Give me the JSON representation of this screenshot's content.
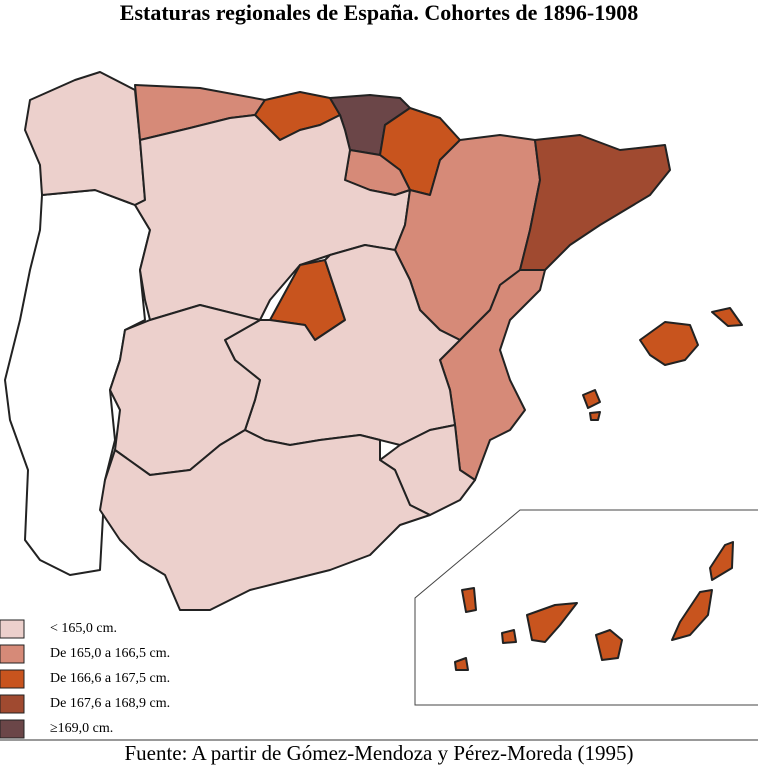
{
  "title": "Estaturas regionales de España. Cohortes de 1896-1908",
  "legend": {
    "items": [
      {
        "label": "< 165,0 cm.",
        "color": "#ecd0cc"
      },
      {
        "label": "De 165,0 a 166,5 cm.",
        "color": "#d68a78"
      },
      {
        "label": "De 166,6 a 167,5 cm.",
        "color": "#c8541e"
      },
      {
        "label": "De  167,6 a 168,9 cm.",
        "color": "#a04a30"
      },
      {
        "label": "≥169,0 cm.",
        "color": "#6b4648"
      }
    ]
  },
  "source": "Fuente: A partir de Gómez-Mendoza y Pérez-Moreda (1995)"
}
